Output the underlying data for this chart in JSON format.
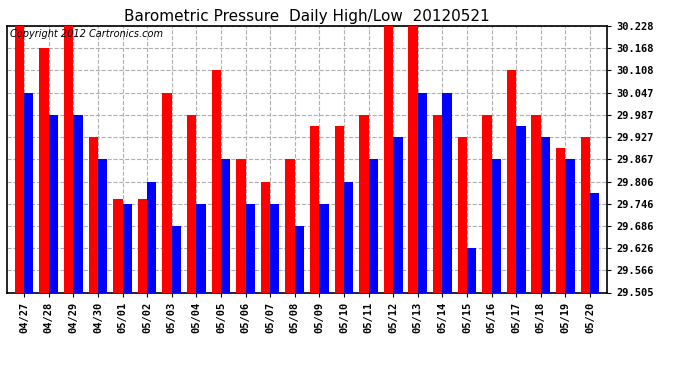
{
  "title": "Barometric Pressure  Daily High/Low  20120521",
  "copyright": "Copyright 2012 Cartronics.com",
  "dates": [
    "04/27",
    "04/28",
    "04/29",
    "04/30",
    "05/01",
    "05/02",
    "05/03",
    "05/04",
    "05/05",
    "05/06",
    "05/07",
    "05/08",
    "05/09",
    "05/10",
    "05/11",
    "05/12",
    "05/13",
    "05/14",
    "05/15",
    "05/16",
    "05/17",
    "05/18",
    "05/19",
    "05/20"
  ],
  "highs": [
    30.228,
    30.168,
    30.228,
    29.927,
    29.76,
    29.76,
    30.047,
    29.987,
    30.108,
    29.867,
    29.806,
    29.867,
    29.957,
    29.957,
    29.987,
    30.228,
    30.228,
    29.987,
    29.927,
    29.987,
    30.108,
    29.987,
    29.897,
    29.927
  ],
  "lows": [
    30.047,
    29.987,
    29.987,
    29.867,
    29.746,
    29.806,
    29.686,
    29.746,
    29.867,
    29.746,
    29.746,
    29.686,
    29.746,
    29.806,
    29.867,
    29.927,
    30.047,
    30.047,
    29.626,
    29.867,
    29.957,
    29.927,
    29.867,
    29.776
  ],
  "high_color": "#ff0000",
  "low_color": "#0000ff",
  "bg_color": "#ffffff",
  "plot_bg_color": "#ffffff",
  "grid_color": "#b0b0b0",
  "ymin": 29.505,
  "ymax": 30.228,
  "yticks": [
    29.505,
    29.566,
    29.626,
    29.686,
    29.746,
    29.806,
    29.867,
    29.927,
    29.987,
    30.047,
    30.108,
    30.168,
    30.228
  ],
  "title_fontsize": 11,
  "tick_fontsize": 7.5,
  "copyright_fontsize": 7,
  "bar_width": 0.38
}
